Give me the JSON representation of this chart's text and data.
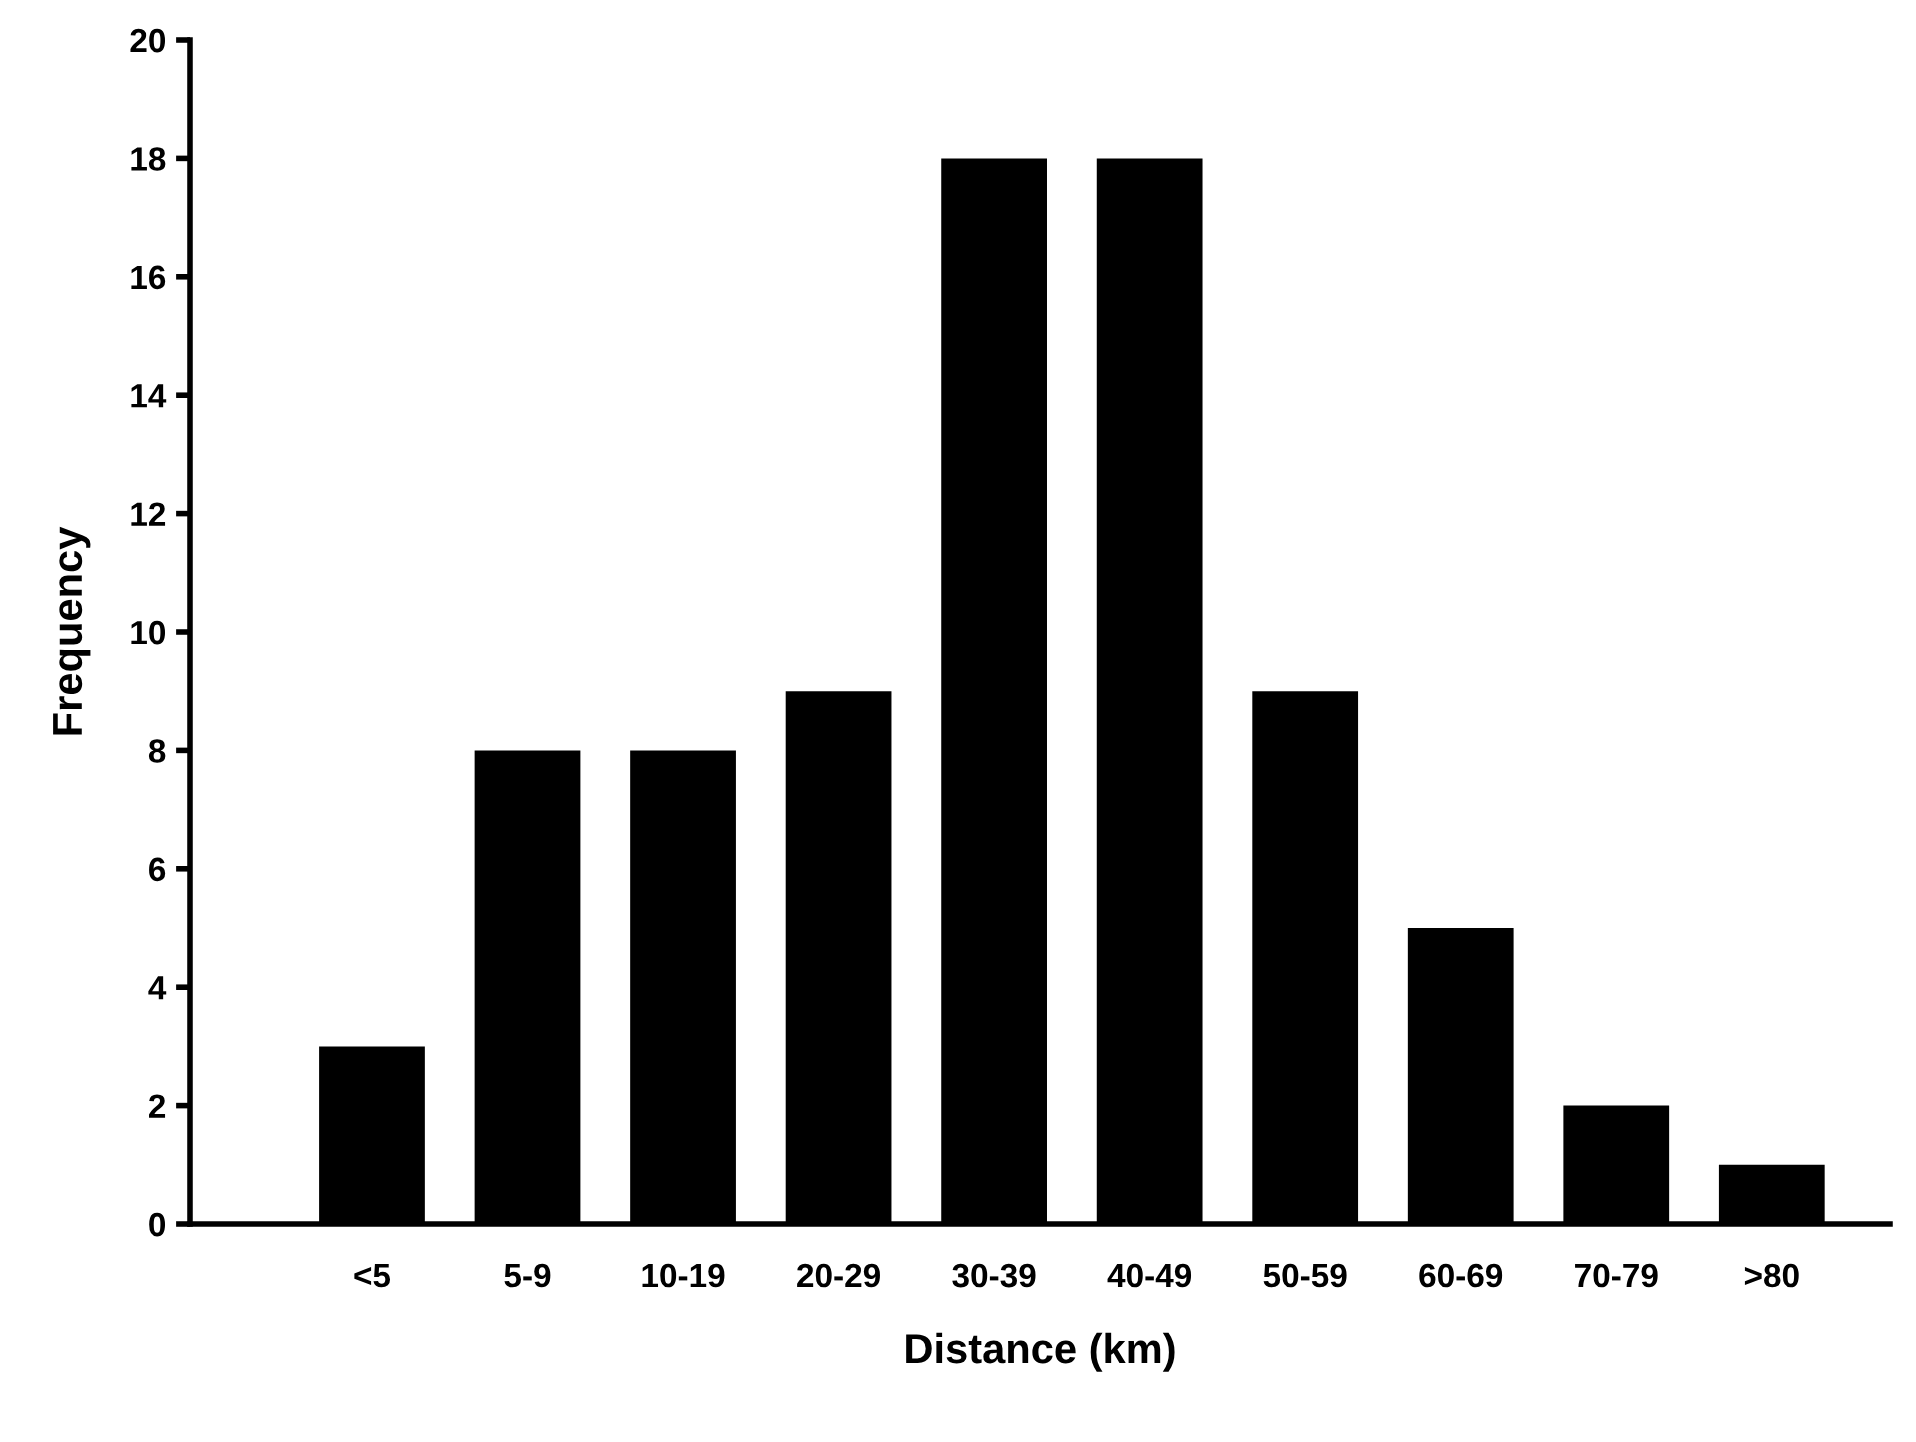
{
  "chart_data": {
    "type": "bar",
    "xlabel": "Distance (km)",
    "ylabel": "Frequency",
    "categories": [
      "<5",
      "5-9",
      "10-19",
      "20-29",
      "30-39",
      "40-49",
      "50-59",
      "60-69",
      "70-79",
      ">80"
    ],
    "values": [
      3,
      8,
      8,
      9,
      18,
      18,
      9,
      5,
      2,
      1
    ],
    "color": "#000000",
    "ylim": [
      0,
      20
    ],
    "yticks": [
      0,
      2,
      4,
      6,
      8,
      10,
      12,
      14,
      16,
      18,
      20
    ],
    "grid": false,
    "legend": false
  }
}
